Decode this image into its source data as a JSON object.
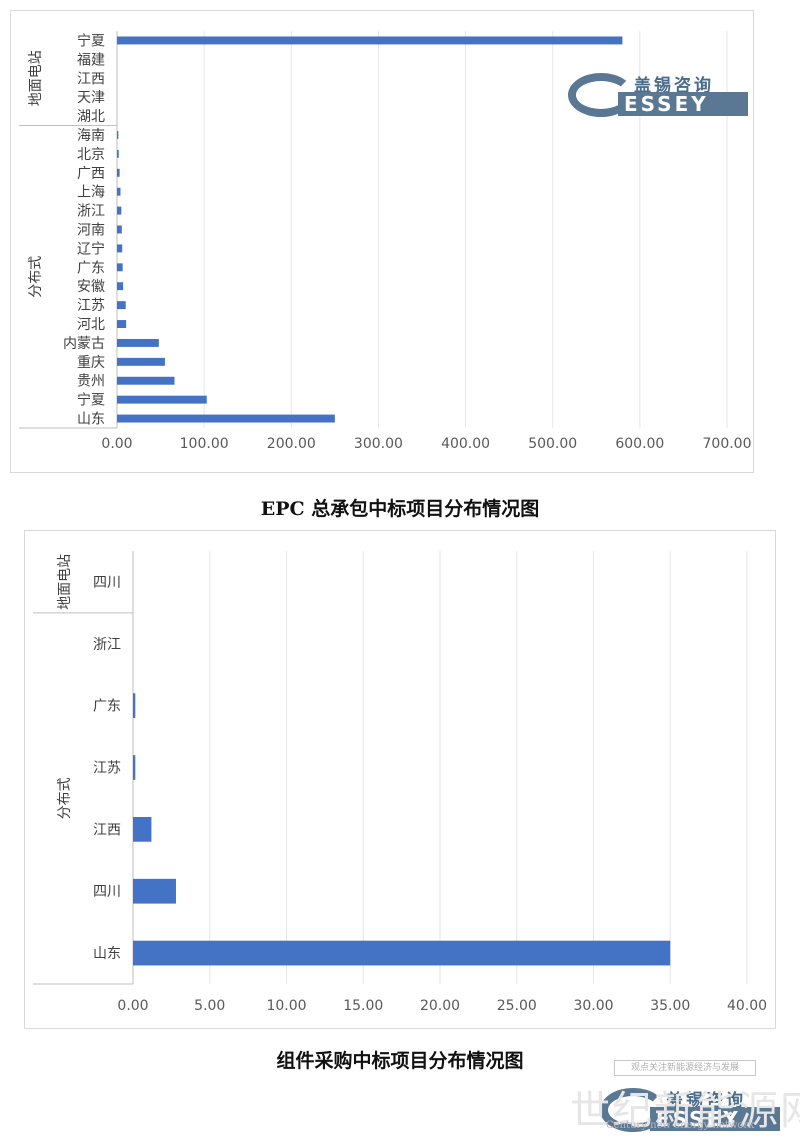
{
  "chart_data": [
    {
      "type": "bar",
      "orientation": "horizontal",
      "xlim": [
        0,
        700
      ],
      "ticks": [
        "0.00",
        "100.00",
        "200.00",
        "300.00",
        "400.00",
        "500.00",
        "600.00",
        "700.00"
      ],
      "grid": true,
      "groups": [
        {
          "label": "地面电站",
          "categories": [
            "宁夏",
            "福建",
            "江西",
            "天津",
            "湖北"
          ],
          "values": [
            580,
            0,
            0,
            0,
            0
          ]
        },
        {
          "label": "分布式",
          "categories": [
            "海南",
            "北京",
            "广西",
            "上海",
            "浙江",
            "河南",
            "辽宁",
            "广东",
            "安徽",
            "江苏",
            "河北",
            "内蒙古",
            "重庆",
            "贵州",
            "宁夏",
            "山东"
          ],
          "values": [
            1.5,
            2,
            3,
            4,
            5,
            5.5,
            6,
            6.5,
            7,
            10,
            10.5,
            48,
            55,
            66,
            103,
            250
          ]
        }
      ],
      "caption": "EPC 总承包中标项目分布情况图",
      "bar_color": "#4472c4"
    },
    {
      "type": "bar",
      "orientation": "horizontal",
      "xlim": [
        0,
        40
      ],
      "ticks": [
        "0.00",
        "5.00",
        "10.00",
        "15.00",
        "20.00",
        "25.00",
        "30.00",
        "35.00",
        "40.00"
      ],
      "grid": true,
      "groups": [
        {
          "label": "地面电站",
          "categories": [
            "四川"
          ],
          "values": [
            0
          ]
        },
        {
          "label": "分布式",
          "categories": [
            "浙江",
            "广东",
            "江苏",
            "江西",
            "四川",
            "山东"
          ],
          "values": [
            0,
            0.15,
            0.15,
            1.2,
            2.8,
            35
          ]
        }
      ],
      "caption": "组件采购中标项目分布情况图",
      "bar_color": "#4472c4"
    }
  ],
  "logo": {
    "cn": "盖锡咨询",
    "en": "ESSEY"
  },
  "watermark": {
    "box": "观点关注新能源经济与发展",
    "big": "世纪新能源网",
    "small": "Century new energy network"
  }
}
